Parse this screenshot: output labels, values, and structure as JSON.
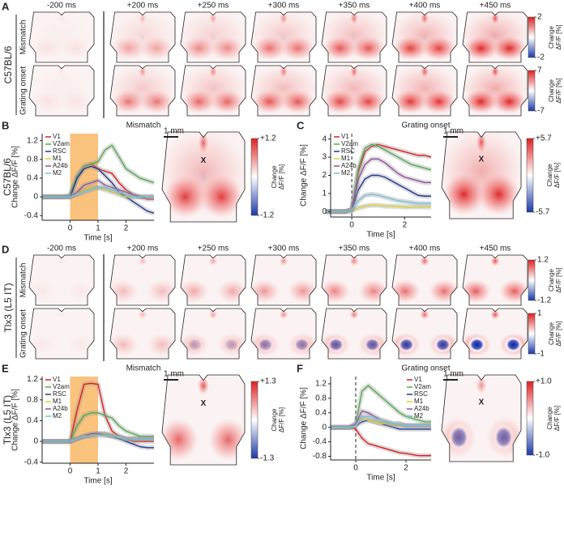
{
  "heatmap_panels": [
    {
      "letter": "A",
      "strain": "C57BL/6",
      "times": [
        "-200 ms",
        "+200 ms",
        "+250 ms",
        "+300 ms",
        "+350 ms",
        "+400 ms",
        "+450 ms"
      ],
      "rows": [
        {
          "label": "Mismatch",
          "colorbar_ticks": [
            2,
            -2
          ]
        },
        {
          "label": "Grating onset",
          "colorbar_ticks": [
            7,
            -7
          ]
        }
      ]
    },
    {
      "letter": "D",
      "strain": "Tlx3 (L5 IT)",
      "times": [
        "-200 ms",
        "+200 ms",
        "+250 ms",
        "+300 ms",
        "+350 ms",
        "+400 ms",
        "+450 ms"
      ],
      "rows": [
        {
          "label": "Mismatch",
          "colorbar_ticks": [
            1.2,
            -1.2
          ]
        },
        {
          "label": "Grating onset",
          "colorbar_ticks": [
            1,
            -1
          ]
        }
      ]
    }
  ],
  "colorbar_title": [
    "Change",
    "ΔF/F [%]"
  ],
  "chart_data": [
    {
      "type": "line",
      "panel": "B",
      "strain": "C57BL/6",
      "title": "Mismatch",
      "xlabel": "Time [s]",
      "ylabel": "Change ΔF/F [%]",
      "x": [
        -1,
        -0.75,
        -0.5,
        -0.25,
        0,
        0.25,
        0.5,
        0.75,
        1,
        1.25,
        1.5,
        1.75,
        2,
        2.25,
        2.5,
        2.75,
        3
      ],
      "xlim": [
        -1,
        3
      ],
      "xticks": [
        0,
        1,
        2
      ],
      "ylim": [
        -0.5,
        1.35
      ],
      "yticks": [
        -0.4,
        0,
        0.4,
        0.8,
        1.2
      ],
      "stimulus": [
        0,
        1
      ],
      "legend": "upper left",
      "series": [
        {
          "name": "V1",
          "color": "#e41a1c",
          "values": [
            0,
            0,
            0,
            0,
            0,
            0.4,
            0.65,
            0.7,
            0.6,
            0.55,
            0.5,
            0.3,
            0.15,
            0.05,
            0,
            -0.05,
            -0.05
          ]
        },
        {
          "name": "V2am",
          "color": "#4daf4a",
          "values": [
            0,
            0,
            0,
            0,
            0.05,
            0.45,
            0.65,
            0.7,
            0.75,
            1.0,
            1.1,
            0.85,
            0.6,
            0.5,
            0.4,
            0.35,
            0.3
          ]
        },
        {
          "name": "RSC",
          "color": "#1f3a93",
          "values": [
            0,
            0,
            0,
            0,
            0,
            0.4,
            0.6,
            0.65,
            0.6,
            0.45,
            0.3,
            0.1,
            0,
            -0.1,
            -0.2,
            -0.3,
            -0.35
          ]
        },
        {
          "name": "M1",
          "color": "#d4d42a",
          "values": [
            0,
            0,
            0,
            0,
            0,
            0.05,
            0.15,
            0.2,
            0.2,
            0.15,
            0.1,
            0.05,
            0,
            0,
            0,
            0,
            0
          ]
        },
        {
          "name": "A24b",
          "color": "#984ea3",
          "values": [
            0,
            0,
            0,
            0,
            0,
            0.1,
            0.25,
            0.3,
            0.35,
            0.25,
            0.2,
            0.15,
            0.1,
            0.05,
            0,
            0,
            0
          ]
        },
        {
          "name": "M2",
          "color": "#6fc3df",
          "values": [
            0,
            0,
            0,
            0,
            0,
            0.05,
            0.1,
            0.15,
            0.2,
            0.2,
            0.15,
            0.1,
            0.05,
            0,
            0,
            0,
            0
          ]
        }
      ],
      "map": {
        "scale": "1 mm",
        "marker": "X",
        "colorbar_ticks": [
          {
            "value": 1.2,
            "label": "+1.2"
          },
          -1.2
        ]
      }
    },
    {
      "type": "line",
      "panel": "C",
      "title": "Grating onset",
      "xlabel": "Time [s]",
      "ylabel": "Change ΔF/F [%]",
      "x": [
        -1,
        -0.75,
        -0.5,
        -0.25,
        0,
        0.25,
        0.5,
        0.75,
        1,
        1.25,
        1.5,
        1.75,
        2,
        2.25,
        2.5,
        2.75,
        3
      ],
      "xlim": [
        -0.8,
        3
      ],
      "xticks": [
        0,
        2
      ],
      "ylim": [
        -0.3,
        4.3
      ],
      "yticks": [
        0,
        1,
        2,
        3,
        4
      ],
      "onset": 0,
      "legend": "upper left",
      "series": [
        {
          "name": "V1",
          "color": "#e41a1c",
          "values": [
            0,
            0,
            0,
            0,
            0.1,
            2.2,
            3.3,
            3.6,
            3.7,
            3.6,
            3.5,
            3.4,
            3.3,
            3.2,
            3.1,
            3.1,
            3.0
          ]
        },
        {
          "name": "V2am",
          "color": "#4daf4a",
          "values": [
            0,
            0,
            0,
            0,
            0.1,
            2.4,
            3.5,
            3.7,
            3.6,
            3.4,
            3.2,
            3.0,
            2.8,
            2.6,
            2.5,
            2.4,
            2.3
          ]
        },
        {
          "name": "RSC",
          "color": "#1f3a93",
          "values": [
            0,
            0,
            0,
            0,
            0.1,
            1.2,
            1.8,
            2.0,
            2.0,
            1.9,
            1.7,
            1.5,
            1.3,
            1.1,
            0.9,
            0.85,
            0.85
          ]
        },
        {
          "name": "M1",
          "color": "#d4d42a",
          "values": [
            0,
            0,
            0,
            0,
            0.05,
            0.2,
            0.3,
            0.35,
            0.35,
            0.3,
            0.3,
            0.28,
            0.25,
            0.25,
            0.25,
            0.25,
            0.25
          ]
        },
        {
          "name": "A24b",
          "color": "#984ea3",
          "values": [
            0,
            0,
            0,
            0,
            0.1,
            1.8,
            2.6,
            2.9,
            2.9,
            2.7,
            2.4,
            2.1,
            1.9,
            1.8,
            1.7,
            1.6,
            1.6
          ]
        },
        {
          "name": "M2",
          "color": "#6fc3df",
          "values": [
            0,
            0,
            0,
            0,
            0.1,
            0.6,
            0.9,
            0.95,
            0.9,
            0.8,
            0.7,
            0.6,
            0.55,
            0.5,
            0.45,
            0.45,
            0.45
          ]
        }
      ],
      "map": {
        "scale": "1 mm",
        "marker": "X",
        "colorbar_ticks": [
          {
            "value": 5.7,
            "label": "+5.7"
          },
          -5.7
        ]
      }
    },
    {
      "type": "line",
      "panel": "E",
      "strain": "Tlx3 (L5 IT)",
      "title": "Mismatch",
      "xlabel": "Time [s]",
      "ylabel": "Change ΔF/F [%]",
      "x": [
        -1,
        -0.75,
        -0.5,
        -0.25,
        0,
        0.25,
        0.5,
        0.75,
        1,
        1.25,
        1.5,
        1.75,
        2,
        2.25,
        2.5,
        2.75,
        3
      ],
      "xlim": [
        -1,
        3
      ],
      "xticks": [
        0,
        1,
        2
      ],
      "ylim": [
        -0.42,
        1.25
      ],
      "yticks": [
        -0.4,
        0,
        0.4,
        0.8,
        1.2
      ],
      "stimulus": [
        0,
        1
      ],
      "legend": "upper left",
      "series": [
        {
          "name": "V1",
          "color": "#e41a1c",
          "values": [
            0,
            0,
            0,
            0,
            0,
            0.6,
            1.1,
            1.12,
            1.1,
            0.5,
            0.2,
            0.1,
            0.05,
            0,
            0,
            0,
            0
          ]
        },
        {
          "name": "V2am",
          "color": "#4daf4a",
          "values": [
            0,
            0,
            0,
            0,
            0,
            0.3,
            0.5,
            0.55,
            0.55,
            0.5,
            0.45,
            0.3,
            0.2,
            0.15,
            0.1,
            0.1,
            0.1
          ]
        },
        {
          "name": "RSC",
          "color": "#1f3a93",
          "values": [
            0,
            0,
            0,
            0,
            0,
            0.05,
            0.1,
            0.12,
            0.15,
            0.15,
            0.1,
            0.05,
            0,
            -0.05,
            -0.1,
            -0.12,
            -0.12
          ]
        },
        {
          "name": "M1",
          "color": "#d4d42a",
          "values": [
            0,
            0,
            0,
            0,
            0,
            0.05,
            0.1,
            0.12,
            0.15,
            0.15,
            0.12,
            0.1,
            0.05,
            0.05,
            0.05,
            0.05,
            0.05
          ]
        },
        {
          "name": "A24b",
          "color": "#984ea3",
          "values": [
            0,
            0,
            0,
            0,
            0,
            0.05,
            0.1,
            0.15,
            0.15,
            0.12,
            0.1,
            0.08,
            0.05,
            0.05,
            0.05,
            0.05,
            0.05
          ]
        },
        {
          "name": "M2",
          "color": "#6fc3df",
          "values": [
            0,
            0,
            0,
            0,
            0,
            0.05,
            0.1,
            0.1,
            0.12,
            0.12,
            0.1,
            0.08,
            0.05,
            0.05,
            0.05,
            0.05,
            0.05
          ]
        }
      ],
      "map": {
        "scale": "1 mm",
        "marker": "X",
        "colorbar_ticks": [
          {
            "value": 1.3,
            "label": "+1.3"
          },
          -1.3
        ]
      }
    },
    {
      "type": "line",
      "panel": "F",
      "title": "Grating onset",
      "xlabel": "Time [s]",
      "ylabel": "Change ΔF/F [%]",
      "x": [
        -1,
        -0.75,
        -0.5,
        -0.25,
        0,
        0.25,
        0.5,
        0.75,
        1,
        1.25,
        1.5,
        1.75,
        2,
        2.25,
        2.5,
        2.75,
        3
      ],
      "xlim": [
        -1,
        3
      ],
      "xticks": [
        0,
        2
      ],
      "ylim": [
        -0.9,
        1.4
      ],
      "yticks": [
        -0.8,
        -0.4,
        0,
        0.4,
        0.8,
        1.2
      ],
      "onset": 0,
      "legend": "upper right",
      "series": [
        {
          "name": "V1",
          "color": "#e41a1c",
          "values": [
            0,
            0,
            0,
            0,
            -0.05,
            -0.3,
            -0.45,
            -0.5,
            -0.55,
            -0.6,
            -0.65,
            -0.7,
            -0.72,
            -0.75,
            -0.78,
            -0.78,
            -0.78
          ]
        },
        {
          "name": "V2am",
          "color": "#4daf4a",
          "values": [
            0,
            0,
            0,
            0,
            0.1,
            1.0,
            1.15,
            1.0,
            0.85,
            0.7,
            0.55,
            0.4,
            0.3,
            0.25,
            0.2,
            0.15,
            0.15
          ]
        },
        {
          "name": "RSC",
          "color": "#1f3a93",
          "values": [
            0,
            0,
            0,
            0,
            0.05,
            0.15,
            0.2,
            0.15,
            0.1,
            0.05,
            0,
            -0.05,
            -0.05,
            -0.05,
            -0.05,
            -0.05,
            -0.05
          ]
        },
        {
          "name": "M1",
          "color": "#d4d42a",
          "values": [
            0,
            0,
            0,
            0,
            0.05,
            0.25,
            0.2,
            0.15,
            0.1,
            0.1,
            0.05,
            0.05,
            0.05,
            0.05,
            0.05,
            0.05,
            0.05
          ]
        },
        {
          "name": "A24b",
          "color": "#984ea3",
          "values": [
            0,
            0,
            0,
            0,
            0.1,
            0.45,
            0.4,
            0.3,
            0.2,
            0.15,
            0.1,
            0.1,
            0.05,
            0.05,
            0.05,
            0.05,
            0.05
          ]
        },
        {
          "name": "M2",
          "color": "#6fc3df",
          "values": [
            0,
            0,
            0,
            0,
            0.05,
            0.3,
            0.3,
            0.25,
            0.2,
            0.15,
            0.1,
            0.1,
            0.05,
            0.05,
            0.05,
            0.05,
            0.05
          ]
        }
      ],
      "map": {
        "scale": "1 mm",
        "marker": "X",
        "colorbar_ticks": [
          {
            "value": 1.0,
            "label": "+1.0"
          },
          {
            "value": -1.0,
            "label": "-1.0"
          }
        ]
      }
    }
  ]
}
